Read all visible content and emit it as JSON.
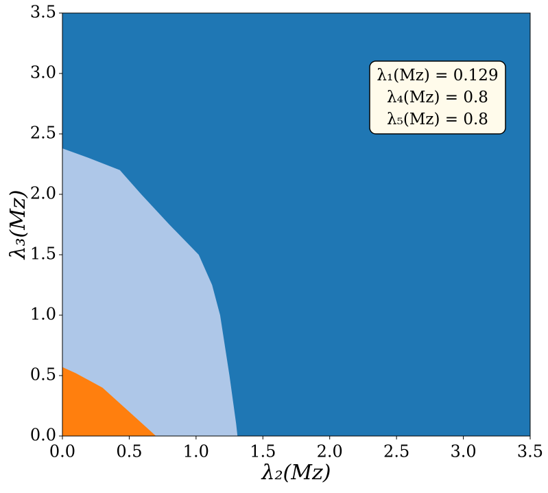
{
  "chart_data": {
    "type": "region",
    "x_label": "λ₂(Mᴢ)",
    "y_label": "λ₃(Mᴢ)",
    "annotations": [
      "λ₁(Mᴢ) = 0.129",
      "λ₄(Mᴢ) = 0.8",
      "λ₅(Mᴢ) = 0.8"
    ],
    "background_color": "#1f77b4",
    "series": [
      {
        "color": "#aec7e8",
        "x": [
          0,
          0.2,
          0.43,
          0.59,
          0.8,
          1.02,
          1.12,
          1.18,
          1.25,
          1.3,
          1.31
        ],
        "values": [
          2.38,
          2.3,
          2.2,
          2.0,
          1.75,
          1.5,
          1.25,
          1.0,
          0.5,
          0.1,
          0
        ]
      },
      {
        "color": "#ff7f0e",
        "x": [
          0,
          0.1,
          0.3,
          0.5,
          0.6,
          0.7
        ],
        "values": [
          0.57,
          0.52,
          0.4,
          0.2,
          0.1,
          0
        ]
      }
    ],
    "xlim": [
      0,
      3.5
    ],
    "ylim": [
      0,
      3.5
    ],
    "xticks": [
      {
        "value": 0,
        "label": "0.0"
      },
      0.5,
      {
        "value": 1,
        "label": "1.0"
      },
      1.5,
      {
        "value": 2,
        "label": "2.0"
      },
      2.5,
      {
        "value": 3,
        "label": "3.0"
      },
      3.5
    ],
    "yticks": [
      {
        "value": 0,
        "label": "0.0"
      },
      0.5,
      {
        "value": 1,
        "label": "1.0"
      },
      1.5,
      {
        "value": 2,
        "label": "2.0"
      },
      2.5,
      {
        "value": 3,
        "label": "3.0"
      },
      3.5
    ]
  }
}
